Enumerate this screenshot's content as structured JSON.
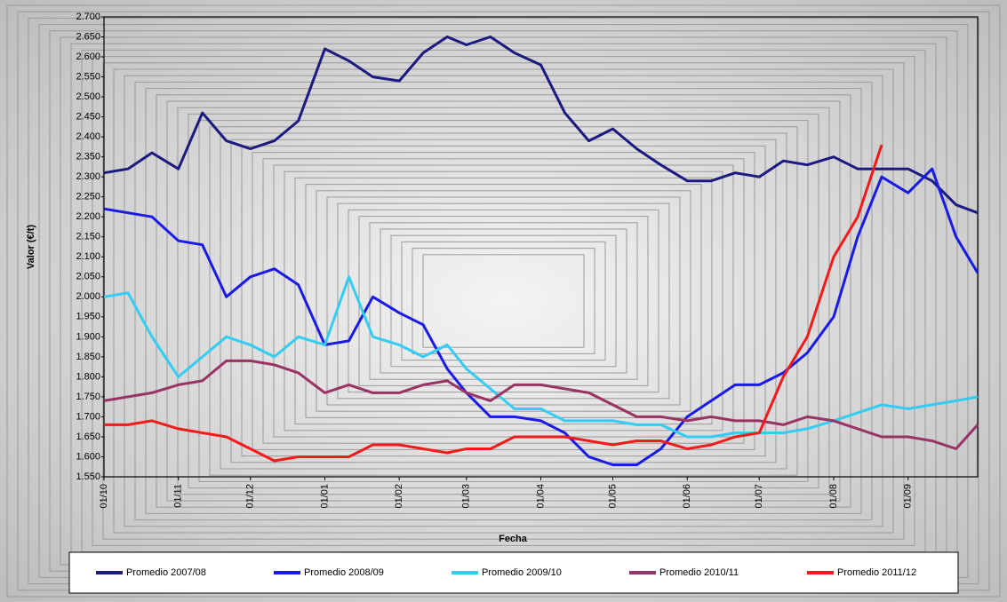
{
  "chart_data": {
    "type": "line",
    "xlabel": "Fecha",
    "ylabel": "Valor (€/t)",
    "x": [
      "01/10",
      "11/10",
      "21/10",
      "01/11",
      "11/11",
      "21/11",
      "01/12",
      "11/12",
      "21/12",
      "01/01",
      "11/01",
      "21/01",
      "01/02",
      "11/02",
      "21/02",
      "01/03",
      "11/03",
      "21/03",
      "01/04",
      "11/04",
      "21/04",
      "01/05",
      "11/05",
      "21/05",
      "01/06",
      "11/06",
      "21/06",
      "01/07",
      "11/07",
      "21/07",
      "01/08",
      "11/08",
      "21/08",
      "01/09",
      "11/09",
      "21/09",
      "30/09"
    ],
    "xlim": [
      "01/10",
      "30/09"
    ],
    "xticks": [
      "01/10",
      "01/11",
      "01/12",
      "01/01",
      "01/02",
      "01/03",
      "01/04",
      "01/05",
      "01/06",
      "01/07",
      "01/08",
      "01/09"
    ],
    "ylim": [
      1550,
      2700
    ],
    "yticks": [
      {
        "value": 1550,
        "label": "1.550"
      },
      {
        "value": 1600,
        "label": "1.600"
      },
      {
        "value": 1650,
        "label": "1.650"
      },
      {
        "value": 1700,
        "label": "1.700"
      },
      {
        "value": 1750,
        "label": "1.750"
      },
      {
        "value": 1800,
        "label": "1.800"
      },
      {
        "value": 1850,
        "label": "1.850"
      },
      {
        "value": 1900,
        "label": "1.900"
      },
      {
        "value": 1950,
        "label": "1.950"
      },
      {
        "value": 2000,
        "label": "2.000"
      },
      {
        "value": 2050,
        "label": "2.050"
      },
      {
        "value": 2100,
        "label": "2.100"
      },
      {
        "value": 2150,
        "label": "2.150"
      },
      {
        "value": 2200,
        "label": "2.200"
      },
      {
        "value": 2250,
        "label": "2.250"
      },
      {
        "value": 2300,
        "label": "2.300"
      },
      {
        "value": 2350,
        "label": "2.350"
      },
      {
        "value": 2400,
        "label": "2.400"
      },
      {
        "value": 2450,
        "label": "2.450"
      },
      {
        "value": 2500,
        "label": "2.500"
      },
      {
        "value": 2550,
        "label": "2.550"
      },
      {
        "value": 2600,
        "label": "2.600"
      },
      {
        "value": 2650,
        "label": "2.650"
      },
      {
        "value": 2700,
        "label": "2.700"
      }
    ],
    "grid": false,
    "legend": "bottom",
    "series": [
      {
        "name": "Promedio 2007/08",
        "color": "#1a1a80",
        "values": [
          2310,
          2320,
          2360,
          2320,
          2460,
          2390,
          2370,
          2390,
          2440,
          2620,
          2590,
          2550,
          2540,
          2610,
          2650,
          2630,
          2650,
          2610,
          2580,
          2460,
          2390,
          2420,
          2370,
          2330,
          2290,
          2290,
          2310,
          2300,
          2340,
          2330,
          2350,
          2320,
          2320,
          2320,
          2290,
          2230,
          2210
        ]
      },
      {
        "name": "Promedio 2008/09",
        "color": "#1a1ae6",
        "values": [
          2220,
          2210,
          2200,
          2140,
          2130,
          2000,
          2050,
          2070,
          2030,
          1880,
          1890,
          2000,
          1960,
          1930,
          1820,
          1760,
          1700,
          1700,
          1690,
          1660,
          1600,
          1580,
          1580,
          1620,
          1700,
          1740,
          1780,
          1780,
          1810,
          1860,
          1950,
          2150,
          2300,
          2260,
          2320,
          2150,
          2060
        ]
      },
      {
        "name": "Promedio 2009/10",
        "color": "#33ccf2",
        "values": [
          2000,
          2010,
          1900,
          1800,
          1850,
          1900,
          1880,
          1850,
          1900,
          1880,
          2050,
          1900,
          1880,
          1850,
          1880,
          1820,
          1770,
          1720,
          1720,
          1690,
          1690,
          1690,
          1680,
          1680,
          1650,
          1650,
          1660,
          1660,
          1660,
          1670,
          1690,
          1710,
          1730,
          1720,
          1730,
          1740,
          1750
        ]
      },
      {
        "name": "Promedio 2010/11",
        "color": "#993366",
        "values": [
          1740,
          1750,
          1760,
          1780,
          1790,
          1840,
          1840,
          1830,
          1810,
          1760,
          1780,
          1760,
          1760,
          1780,
          1790,
          1760,
          1740,
          1780,
          1780,
          1770,
          1760,
          1730,
          1700,
          1700,
          1690,
          1700,
          1690,
          1690,
          1680,
          1700,
          1690,
          1670,
          1650,
          1650,
          1640,
          1620,
          1680
        ]
      },
      {
        "name": "Promedio 2011/12",
        "color": "#f21a1a",
        "values": [
          1680,
          1680,
          1690,
          1670,
          1660,
          1650,
          1620,
          1590,
          1600,
          1600,
          1600,
          1630,
          1630,
          1620,
          1610,
          1620,
          1620,
          1650,
          1650,
          1650,
          1640,
          1630,
          1640,
          1640,
          1620,
          1630,
          1650,
          1660,
          1800,
          1900,
          2100,
          2200,
          2380,
          null,
          null,
          null,
          null
        ]
      }
    ]
  }
}
